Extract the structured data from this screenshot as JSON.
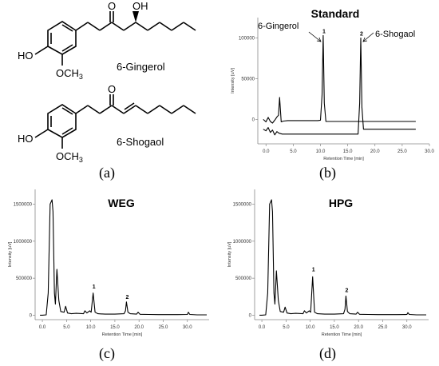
{
  "panels": {
    "a_label": "(a)",
    "b_label": "(b)",
    "c_label": "(c)",
    "d_label": "(d)"
  },
  "structures": {
    "gingerol": {
      "name": "6-Gingerol",
      "oh": "HO",
      "methoxy": "OCH",
      "methoxy_sub": "3",
      "ketone_o": "O",
      "hydroxyl": "OH"
    },
    "shogaol": {
      "name": "6-Shogaol",
      "oh": "HO",
      "methoxy": "OCH",
      "methoxy_sub": "3",
      "ketone_o": "O"
    }
  },
  "chart_data": [
    {
      "id": "b",
      "type": "line",
      "title": "Standard",
      "xlabel": "Retention Time [min]",
      "ylabel": "Intensity [uV]",
      "xlim": [
        -1.5,
        30
      ],
      "ylim": [
        -30000,
        125000
      ],
      "xticks": [
        "0.0",
        "5.0",
        "10.0",
        "15.0",
        "20.0",
        "25.0",
        "30.0"
      ],
      "xtick_values": [
        0,
        5,
        10,
        15,
        20,
        25,
        30
      ],
      "yticks": [
        "0",
        "50000",
        "100000"
      ],
      "ytick_values": [
        0,
        50000,
        100000
      ],
      "annotations": [
        {
          "text": "6-Gingerol",
          "x": 10.5
        },
        {
          "text": "6-Shogaol",
          "x": 17.4
        }
      ],
      "peak_labels": [
        {
          "text": "1",
          "x": 10.5,
          "y": 103000
        },
        {
          "text": "2",
          "x": 17.4,
          "y": 100000
        }
      ],
      "series": [
        {
          "x": [
            -0.5,
            0,
            0.4,
            0.8,
            1.2,
            1.6,
            2.0,
            2.3,
            2.5,
            2.8,
            3.2,
            4,
            6,
            8,
            9.5,
            10,
            10.3,
            10.5,
            10.7,
            11,
            12,
            14,
            16,
            18,
            20,
            22,
            24,
            26,
            27.5
          ],
          "y": [
            0,
            -3000,
            2500,
            -2500,
            -4500,
            -1000,
            3000,
            5000,
            27000,
            -3000,
            -2000,
            -1500,
            -1500,
            -1500,
            -1500,
            -1000,
            30000,
            103000,
            20000,
            -2500,
            -2500,
            -2500,
            -2500,
            -2500,
            -2500,
            -2500,
            -2500,
            -2500,
            -2500
          ]
        },
        {
          "x": [
            -0.5,
            0,
            0.4,
            0.8,
            1.2,
            1.6,
            2.0,
            2.4,
            3,
            4,
            8,
            12,
            16,
            16.9,
            17.2,
            17.4,
            17.6,
            17.9,
            18.5,
            19.5,
            22,
            25,
            27.5
          ],
          "y": [
            -12000,
            -14000,
            -10000,
            -16000,
            -13000,
            -19000,
            -15000,
            -17000,
            -18000,
            -18000,
            -18000,
            -18000,
            -18000,
            -18000,
            20000,
            100000,
            15000,
            -12000,
            -12000,
            -12000,
            -12000,
            -12000,
            -12000
          ]
        }
      ]
    },
    {
      "id": "c",
      "type": "line",
      "title": "WEG",
      "xlabel": "Retention Time [min]",
      "ylabel": "Intensity [uV]",
      "xlim": [
        -1.5,
        34.5
      ],
      "ylim": [
        -60000,
        1700000
      ],
      "xticks": [
        "0.0",
        "5.0",
        "10.0",
        "15.0",
        "20.0",
        "25.0",
        "30.0"
      ],
      "xtick_values": [
        0,
        5,
        10,
        15,
        20,
        25,
        30
      ],
      "yticks": [
        "0",
        "500000",
        "1000000",
        "1500000"
      ],
      "ytick_values": [
        0,
        500000,
        1000000,
        1500000
      ],
      "peak_labels": [
        {
          "text": "1",
          "x": 10.5,
          "y": 330000
        },
        {
          "text": "2",
          "x": 17.4,
          "y": 190000
        }
      ],
      "series": [
        {
          "x": [
            -0.5,
            0,
            0.8,
            1.2,
            1.6,
            2.0,
            2.2,
            2.5,
            2.7,
            3.0,
            3.4,
            3.8,
            4.5,
            4.8,
            5.2,
            6,
            7,
            8.5,
            8.8,
            9.2,
            9.8,
            10.1,
            10.5,
            10.9,
            11.5,
            13,
            15,
            16.9,
            17.2,
            17.4,
            17.7,
            18.2,
            19.5,
            19.8,
            20.2,
            22,
            24,
            28,
            30,
            30.2,
            30.5,
            32,
            34
          ],
          "y": [
            0,
            0,
            5000,
            300000,
            1500000,
            1560000,
            1400000,
            300000,
            150000,
            620000,
            200000,
            50000,
            40000,
            120000,
            30000,
            20000,
            25000,
            20000,
            60000,
            30000,
            60000,
            40000,
            300000,
            40000,
            20000,
            15000,
            15000,
            20000,
            60000,
            180000,
            40000,
            20000,
            15000,
            40000,
            12000,
            10000,
            8000,
            8000,
            10000,
            40000,
            10000,
            5000,
            5000
          ]
        }
      ]
    },
    {
      "id": "d",
      "type": "line",
      "title": "HPG",
      "xlabel": "Retention Time [min]",
      "ylabel": "Intensity [uV]",
      "xlim": [
        -1.5,
        34.5
      ],
      "ylim": [
        -60000,
        1700000
      ],
      "xticks": [
        "0.0",
        "5.0",
        "10.0",
        "15.0",
        "20.0",
        "25.0",
        "30.0"
      ],
      "xtick_values": [
        0,
        5,
        10,
        15,
        20,
        25,
        30
      ],
      "yticks": [
        "0",
        "500000",
        "1000000",
        "1500000"
      ],
      "ytick_values": [
        0,
        500000,
        1000000,
        1500000
      ],
      "peak_labels": [
        {
          "text": "1",
          "x": 10.5,
          "y": 560000
        },
        {
          "text": "2",
          "x": 17.4,
          "y": 280000
        }
      ],
      "series": [
        {
          "x": [
            -0.5,
            0,
            0.8,
            1.2,
            1.6,
            2.0,
            2.2,
            2.5,
            2.7,
            3.0,
            3.4,
            3.8,
            4.5,
            4.8,
            5.2,
            6,
            7,
            8.5,
            8.8,
            9.2,
            9.8,
            10.1,
            10.5,
            10.9,
            11.5,
            13,
            15,
            16.9,
            17.2,
            17.4,
            17.7,
            18.2,
            19.5,
            19.8,
            20.2,
            22,
            24,
            28,
            30,
            30.2,
            30.5,
            32,
            34
          ],
          "y": [
            0,
            0,
            5000,
            300000,
            1500000,
            1560000,
            1400000,
            300000,
            150000,
            600000,
            200000,
            50000,
            40000,
            110000,
            30000,
            20000,
            25000,
            20000,
            60000,
            30000,
            60000,
            40000,
            520000,
            40000,
            20000,
            15000,
            15000,
            20000,
            80000,
            260000,
            50000,
            20000,
            15000,
            40000,
            12000,
            10000,
            8000,
            8000,
            10000,
            35000,
            10000,
            5000,
            5000
          ]
        }
      ]
    }
  ]
}
